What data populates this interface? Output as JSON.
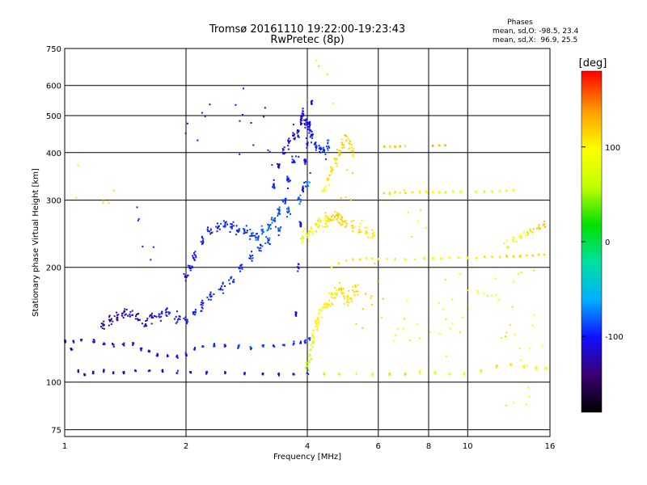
{
  "chart_data": {
    "type": "scatter",
    "title": "Tromsø 20161110 19:22:00-19:23:43",
    "subtitle": "RwPretec (8p)",
    "xlabel": "Frequency [MHz]",
    "ylabel": "Stationary phase Virtual Height [km]",
    "x_scale": "log",
    "y_scale": "log",
    "xlim": [
      1,
      16
    ],
    "ylim": [
      72,
      750
    ],
    "x_ticks": [
      1,
      2,
      4,
      6,
      8,
      10,
      16
    ],
    "x_tick_labels": [
      "1",
      "2",
      "4",
      "6",
      "8",
      "10",
      "16"
    ],
    "y_ticks": [
      75,
      100,
      200,
      300,
      400,
      500,
      600,
      750
    ],
    "y_tick_labels": [
      "75",
      "100",
      "200",
      "300",
      "400",
      "500",
      "600",
      "750"
    ],
    "grid": true,
    "stats": {
      "heading": "Phases",
      "line_o": "mean, sd,O: -98.5, 23.4",
      "line_x": "mean, sd,X:  96.9, 25.5"
    },
    "colorbar": {
      "unit": "[deg]",
      "min": -180,
      "max": 180,
      "ticks": [
        100,
        0,
        -100
      ],
      "tick_labels": [
        "100",
        "0",
        "-100"
      ],
      "colors": [
        "#000000",
        "#3a0070",
        "#1010ff",
        "#00b0ff",
        "#00e0a0",
        "#00e000",
        "#c0ff00",
        "#ffff00",
        "#ffa000",
        "#ff0000"
      ]
    },
    "traces": [
      {
        "x": [
          1.0,
          1.04,
          1.08,
          1.12,
          1.18,
          1.25,
          1.32,
          1.4,
          1.5,
          1.62,
          1.75,
          1.9,
          2.05,
          2.25,
          2.5,
          2.8,
          3.1,
          3.4,
          3.7,
          4.0,
          4.4,
          4.8,
          5.3,
          5.8,
          6.4,
          7.0,
          7.6,
          8.3,
          9.0,
          9.8,
          10.8,
          11.8,
          12.8,
          13.8,
          14.8,
          15.6
        ],
        "y": [
          128,
          122,
          107,
          105,
          106,
          107,
          106,
          106,
          107,
          107,
          107,
          106,
          106,
          106,
          106,
          105,
          105,
          105,
          105,
          105,
          105,
          105,
          105,
          105,
          105,
          105,
          106,
          106,
          105,
          105,
          107,
          110,
          111,
          110,
          109,
          109
        ],
        "phase": [
          -110,
          -110,
          -115,
          -115,
          -112,
          -112,
          -110,
          -110,
          -108,
          -108,
          -106,
          -105,
          -105,
          -104,
          -104,
          -103,
          -102,
          -100,
          -95,
          -85,
          60,
          80,
          95,
          100,
          110,
          115,
          110,
          100,
          95,
          100,
          105,
          110,
          115,
          100,
          95,
          90
        ],
        "n": 6,
        "jy": 0.012,
        "jx": 0.006
      },
      {
        "x": [
          1.0,
          1.05,
          1.1,
          1.18,
          1.25,
          1.32,
          1.4,
          1.48,
          1.55,
          1.62,
          1.7,
          1.8,
          1.9,
          2.0,
          2.1,
          2.2,
          2.35,
          2.5,
          2.7,
          2.9,
          3.1,
          3.3,
          3.5,
          3.7,
          3.85,
          3.95,
          4.05
        ],
        "y": [
          128,
          128,
          129,
          128,
          126,
          125,
          125,
          126,
          122,
          120,
          118,
          117,
          117,
          118,
          122,
          124,
          125,
          125,
          124,
          123,
          124,
          124,
          125,
          126,
          127,
          128,
          130
        ],
        "phase": [
          -110,
          -110,
          -108,
          -108,
          -112,
          -112,
          -112,
          -110,
          -110,
          -108,
          -106,
          -104,
          -100,
          -100,
          -98,
          -98,
          -97,
          -96,
          -94,
          -92,
          -92,
          -92,
          -94,
          -95,
          -98,
          -95,
          -92
        ],
        "n": 5,
        "jy": 0.015,
        "jx": 0.008
      },
      {
        "x": [
          1.25,
          1.3,
          1.35,
          1.4,
          1.45,
          1.52,
          1.58,
          1.65,
          1.72,
          1.8,
          1.9,
          2.0,
          2.1,
          2.2,
          2.3,
          2.45,
          2.6,
          2.75,
          2.9,
          3.05,
          3.2,
          3.4,
          3.6,
          3.8,
          4.0
        ],
        "y": [
          140,
          145,
          148,
          150,
          152,
          147,
          143,
          148,
          150,
          152,
          148,
          145,
          152,
          160,
          168,
          175,
          185,
          200,
          215,
          225,
          235,
          250,
          275,
          300,
          330
        ],
        "phase": [
          -125,
          -125,
          -125,
          -120,
          -118,
          -115,
          -112,
          -110,
          -108,
          -106,
          -104,
          -102,
          -100,
          -100,
          -98,
          -96,
          -95,
          -93,
          -92,
          -90,
          -88,
          -85,
          -85,
          -80,
          -75
        ],
        "n": 10,
        "jy": 0.05,
        "jx": 0.025
      },
      {
        "x": [
          2.0,
          2.05,
          2.1,
          2.2,
          2.3,
          2.4,
          2.5,
          2.6,
          2.7,
          2.8,
          2.9,
          3.0,
          3.1,
          3.2,
          3.3,
          3.4,
          3.5,
          3.6,
          3.7
        ],
        "y": [
          190,
          200,
          215,
          235,
          250,
          255,
          258,
          255,
          250,
          250,
          245,
          240,
          250,
          255,
          265,
          280,
          300,
          340,
          380
        ],
        "phase": [
          -105,
          -104,
          -103,
          -102,
          -100,
          -99,
          -97,
          -95,
          -93,
          -90,
          -88,
          -85,
          -82,
          -80,
          -82,
          -85,
          -90,
          -95,
          -100
        ],
        "n": 10,
        "jy": 0.04,
        "jx": 0.02
      },
      {
        "x": [
          3.3,
          3.4,
          3.5,
          3.6,
          3.7,
          3.8,
          3.85,
          3.9,
          3.95,
          4.0,
          4.05,
          4.1,
          4.2,
          4.3,
          4.4,
          4.5
        ],
        "y": [
          330,
          370,
          400,
          420,
          440,
          450,
          480,
          500,
          480,
          470,
          460,
          440,
          420,
          410,
          400,
          420
        ],
        "phase": [
          -100,
          -105,
          -110,
          -112,
          -115,
          -112,
          -110,
          -110,
          -108,
          -106,
          -104,
          -100,
          -98,
          -95,
          -92,
          -90
        ],
        "n": 9,
        "jy": 0.05,
        "jx": 0.012
      },
      {
        "x": [
          3.75,
          3.8,
          3.85,
          3.9,
          3.95,
          4.0,
          4.05,
          4.1
        ],
        "y": [
          150,
          200,
          260,
          320,
          380,
          420,
          480,
          540
        ],
        "phase": [
          -104,
          -106,
          -108,
          -110,
          -110,
          -108,
          -106,
          -104
        ],
        "n": 10,
        "jy": 0.03,
        "jx": 0.006
      },
      {
        "x": [
          4.0,
          4.05,
          4.1,
          4.15,
          4.2,
          4.25,
          4.3,
          4.4,
          4.5,
          4.6,
          4.7,
          4.8,
          4.9,
          5.0,
          5.1,
          5.2,
          5.3
        ],
        "y": [
          110,
          118,
          125,
          132,
          140,
          145,
          150,
          158,
          160,
          165,
          170,
          175,
          170,
          165,
          168,
          172,
          175
        ],
        "phase": [
          60,
          70,
          80,
          90,
          95,
          100,
          100,
          105,
          108,
          110,
          110,
          112,
          110,
          108,
          110,
          112,
          115
        ],
        "n": 8,
        "jy": 0.06,
        "jx": 0.02
      },
      {
        "x": [
          4.4,
          4.5,
          4.6,
          4.7,
          4.8,
          4.9,
          5.0,
          5.1,
          5.2
        ],
        "y": [
          320,
          340,
          360,
          380,
          400,
          420,
          440,
          420,
          400
        ],
        "phase": [
          100,
          105,
          110,
          115,
          118,
          120,
          118,
          115,
          112
        ],
        "n": 8,
        "jy": 0.04,
        "jx": 0.015
      },
      {
        "x": [
          3.9,
          4.0,
          4.1,
          4.2,
          4.3,
          4.4,
          4.5,
          4.6,
          4.7,
          4.8,
          4.9,
          5.0,
          5.2,
          5.4,
          5.6,
          5.8
        ],
        "y": [
          240,
          245,
          250,
          255,
          260,
          262,
          265,
          268,
          270,
          268,
          265,
          262,
          258,
          255,
          250,
          248
        ],
        "phase": [
          90,
          95,
          100,
          105,
          108,
          110,
          112,
          115,
          118,
          120,
          118,
          116,
          115,
          112,
          110,
          108
        ],
        "n": 8,
        "jy": 0.06,
        "jx": 0.02
      },
      {
        "x": [
          4.6,
          4.8,
          5.0,
          5.2,
          5.4,
          5.6,
          5.8,
          6.0,
          6.3,
          6.6,
          7.0,
          7.4,
          7.8,
          8.2,
          8.6,
          9.0,
          9.5,
          10.0,
          10.5,
          11.0,
          11.5,
          12.0,
          12.5,
          13.0,
          13.5,
          14.0,
          14.5,
          15.0,
          15.5
        ],
        "y": [
          200,
          205,
          208,
          210,
          210,
          211,
          211,
          210,
          210,
          210,
          210,
          210,
          211,
          211,
          211,
          212,
          212,
          212,
          212,
          213,
          213,
          213,
          214,
          214,
          214,
          215,
          215,
          216,
          216
        ],
        "phase": [
          100,
          102,
          104,
          106,
          108,
          110,
          108,
          106,
          104,
          100,
          95,
          90,
          92,
          94,
          96,
          98,
          100,
          102,
          104,
          106,
          108,
          110,
          112,
          114,
          115,
          116,
          117,
          118,
          119
        ],
        "n": 4,
        "jy": 0.008,
        "jx": 0.005
      },
      {
        "x": [
          6.2,
          6.4,
          6.6,
          6.8,
          7.0,
          7.3,
          7.6,
          7.9,
          8.2,
          8.5,
          8.8,
          9.2,
          9.6,
          10.5,
          11.0,
          11.5,
          12.0,
          12.5,
          13.0
        ],
        "y": [
          313,
          313,
          314,
          314,
          314,
          314,
          315,
          315,
          315,
          315,
          315,
          316,
          316,
          316,
          316,
          316,
          317,
          317,
          318
        ],
        "phase": [
          115,
          112,
          110,
          108,
          106,
          104,
          102,
          100,
          98,
          96,
          95,
          94,
          93,
          90,
          92,
          94,
          96,
          98,
          100
        ],
        "n": 4,
        "jy": 0.008,
        "jx": 0.006
      },
      {
        "x": [
          6.2,
          6.4,
          6.6,
          6.8,
          7.0,
          8.2,
          8.5,
          8.8
        ],
        "y": [
          415,
          415,
          415,
          416,
          416,
          417,
          418,
          418
        ],
        "phase": [
          125,
          122,
          120,
          118,
          118,
          130,
          128,
          126
        ],
        "n": 4,
        "jy": 0.006,
        "jx": 0.006
      },
      {
        "x": [
          12.5,
          13.0,
          13.5,
          14.0,
          14.5,
          15.0,
          15.5
        ],
        "y": [
          230,
          235,
          240,
          245,
          250,
          255,
          260
        ],
        "phase": [
          80,
          90,
          100,
          110,
          120,
          125,
          130
        ],
        "n": 5,
        "jy": 0.03,
        "jx": 0.02
      },
      {
        "x": [
          1.2,
          1.6,
          2.1,
          2.7,
          3.2,
          3.6,
          4.3,
          4.9,
          5.5,
          6.1,
          6.8,
          7.5,
          8.3,
          9.1,
          10.0,
          11.0,
          12.0,
          13.0,
          14.0,
          15.0
        ],
        "y": [
          300,
          260,
          480,
          500,
          440,
          380,
          600,
          330,
          150,
          180,
          130,
          270,
          150,
          140,
          180,
          170,
          140,
          160,
          100,
          120
        ],
        "phase": [
          120,
          -100,
          -110,
          -105,
          -100,
          -95,
          110,
          120,
          125,
          115,
          100,
          110,
          105,
          95,
          90,
          100,
          110,
          105,
          100,
          95
        ],
        "n": 6,
        "jy": 0.3,
        "jx": 0.2
      }
    ]
  }
}
